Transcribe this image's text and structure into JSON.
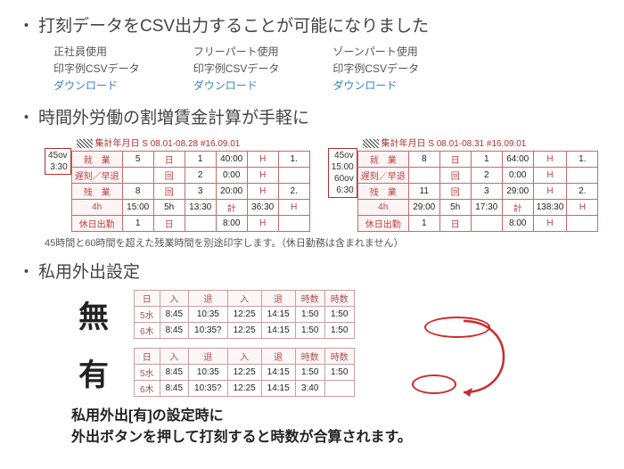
{
  "sections": {
    "csv": {
      "title": "打刻データをCSV出力することが可能になりました",
      "cols": [
        {
          "l1": "正社員使用",
          "l2": "印字例CSVデータ",
          "link": "ダウンロード"
        },
        {
          "l1": "フリーパート使用",
          "l2": "印字例CSVデータ",
          "link": "ダウンロード"
        },
        {
          "l1": "ゾーンパート使用",
          "l2": "印字例CSVデータ",
          "link": "ダウンロード"
        }
      ]
    },
    "overtime": {
      "title": "時間外労働の割増賃金計算が手軽に",
      "note": "45時間と60時間を超えた残業時間を別途印字します。（休日勤務は含まれません）",
      "leftHead": "集計年月日 S 08.01-08.28  #16.09.01",
      "rightHead": "集計年月日 S 08.01-08.31  #16.09.01",
      "leftSide": {
        "a": "45ov",
        "b": "3:30"
      },
      "rightSide": {
        "a": "45ov",
        "b": "15:00",
        "c": "60ov",
        "d": "6:30"
      },
      "left": {
        "r1": [
          "就　業",
          "5",
          "日",
          "1",
          "40:00",
          "H",
          "1."
        ],
        "r2": [
          "遅刻／早退",
          "",
          "回",
          "2",
          "0:00",
          "H",
          ""
        ],
        "r3": [
          "残　業",
          "8",
          "回",
          "3",
          "20:00",
          "H",
          "2."
        ],
        "r4": [
          "4h",
          "15:00",
          "5h",
          "13:30",
          "計",
          "36:30",
          "H"
        ],
        "r5": [
          "休日出勤",
          "1",
          "日",
          "",
          "8:00",
          "H",
          ""
        ]
      },
      "right": {
        "r1": [
          "就　業",
          "8",
          "日",
          "1",
          "64:00",
          "H",
          "1."
        ],
        "r2": [
          "遅刻／早退",
          "",
          "回",
          "2",
          "0:00",
          "H",
          ""
        ],
        "r3": [
          "残　業",
          "11",
          "回",
          "3",
          "29:00",
          "H",
          "2."
        ],
        "r4": [
          "4h",
          "29:00",
          "5h",
          "17:30",
          "計",
          "138:30",
          "H"
        ],
        "r5": [
          "休日出勤",
          "1",
          "日",
          "",
          "8:00",
          "H",
          ""
        ]
      }
    },
    "private": {
      "title": "私用外出設定",
      "labelNone": "無",
      "labelYes": "有",
      "headers": [
        "日",
        "入",
        "退",
        "入",
        "退",
        "時数",
        "時数"
      ],
      "tableNone": [
        [
          "5水",
          "8:45",
          "10:35",
          "12:25",
          "14:15",
          "1:50",
          "1:50"
        ],
        [
          "6木",
          "8:45",
          "10:35?",
          "12:25",
          "14:15",
          "1:50",
          "1:50"
        ]
      ],
      "tableYes": [
        [
          "5水",
          "8:45",
          "10:35",
          "12:25",
          "14:15",
          "1:50",
          "1:50"
        ],
        [
          "6木",
          "8:45",
          "10:35?",
          "12:25",
          "14:15",
          "3:40",
          ""
        ]
      ],
      "bottom1": "私用外出[有]の設定時に",
      "bottom2": "外出ボタンを押して打刻すると時数が合算されます。"
    }
  }
}
